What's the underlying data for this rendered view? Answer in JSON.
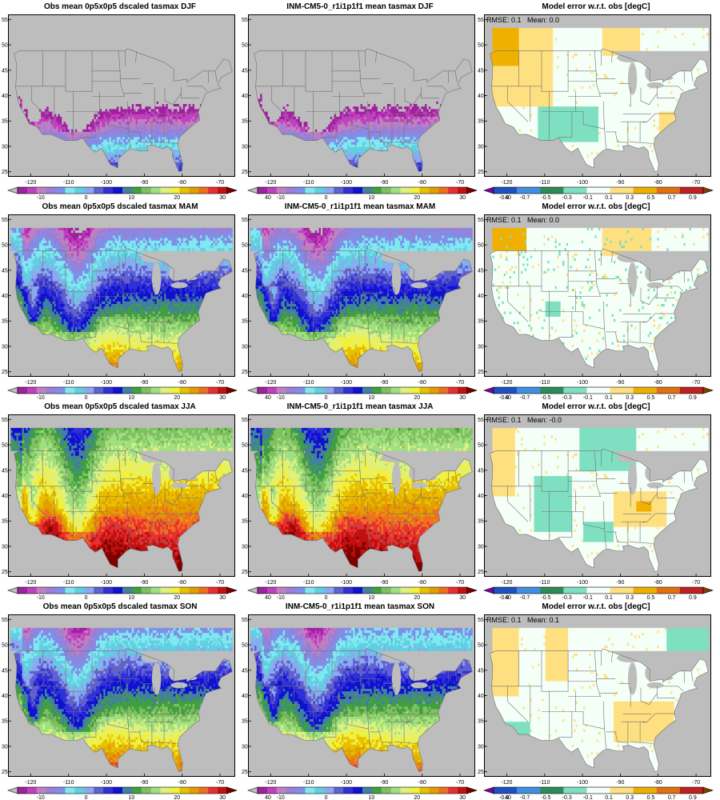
{
  "chart_data": [
    {
      "type": "heatmap",
      "title": "Obs mean 0p5x0p5 dscaled tasmax DJF",
      "kind": "abs",
      "season": "DJF",
      "colorbar": {
        "ticks": [
          "-10",
          "0",
          "10",
          "20",
          "30",
          "40"
        ]
      },
      "xticks": [
        "-120",
        "-110",
        "-100",
        "-90",
        "-80",
        "-70"
      ],
      "yticks": [
        "25",
        "30",
        "35",
        "40",
        "45",
        "50",
        "55"
      ]
    },
    {
      "type": "heatmap",
      "title": "INM-CM5-0_r1i1p1f1 mean tasmax DJF",
      "kind": "abs",
      "season": "DJF",
      "colorbar": {
        "ticks": [
          "-10",
          "0",
          "10",
          "20",
          "30",
          "40"
        ]
      },
      "xticks": [
        "-120",
        "-110",
        "-100",
        "-90",
        "-80",
        "-70"
      ],
      "yticks": [
        "25",
        "30",
        "35",
        "40",
        "45",
        "50",
        "55"
      ]
    },
    {
      "type": "heatmap",
      "title": "Model error w.r.t. obs [degC]",
      "kind": "err",
      "season": "DJF",
      "stats": "RMSE: 0.1   Mean: 0.0",
      "colorbar": {
        "ticks": [
          "-0.9",
          "-0.7",
          "-0.5",
          "-0.3",
          "-0.1",
          "0.1",
          "0.3",
          "0.5",
          "0.7",
          "0.9"
        ]
      },
      "xticks": [
        "-120",
        "-110",
        "-100",
        "-90",
        "-80",
        "-70"
      ],
      "yticks": [
        "25",
        "30",
        "35",
        "40",
        "45",
        "50",
        "55"
      ]
    },
    {
      "type": "heatmap",
      "title": "Obs mean 0p5x0p5 dscaled tasmax MAM",
      "kind": "abs",
      "season": "MAM",
      "colorbar": {
        "ticks": [
          "-10",
          "0",
          "10",
          "20",
          "30",
          "40"
        ]
      },
      "xticks": [
        "-120",
        "-110",
        "-100",
        "-90",
        "-80",
        "-70"
      ],
      "yticks": [
        "25",
        "30",
        "35",
        "40",
        "45",
        "50",
        "55"
      ]
    },
    {
      "type": "heatmap",
      "title": "INM-CM5-0_r1i1p1f1 mean tasmax MAM",
      "kind": "abs",
      "season": "MAM",
      "colorbar": {
        "ticks": [
          "-10",
          "0",
          "10",
          "20",
          "30",
          "40"
        ]
      },
      "xticks": [
        "-120",
        "-110",
        "-100",
        "-90",
        "-80",
        "-70"
      ],
      "yticks": [
        "25",
        "30",
        "35",
        "40",
        "45",
        "50",
        "55"
      ]
    },
    {
      "type": "heatmap",
      "title": "Model error w.r.t. obs [degC]",
      "kind": "err",
      "season": "MAM",
      "stats": "RMSE: 0.1   Mean: 0.0",
      "colorbar": {
        "ticks": [
          "-0.9",
          "-0.7",
          "-0.5",
          "-0.3",
          "-0.1",
          "0.1",
          "0.3",
          "0.5",
          "0.7",
          "0.9"
        ]
      },
      "xticks": [
        "-120",
        "-110",
        "-100",
        "-90",
        "-80",
        "-70"
      ],
      "yticks": [
        "25",
        "30",
        "35",
        "40",
        "45",
        "50",
        "55"
      ]
    },
    {
      "type": "heatmap",
      "title": "Obs mean 0p5x0p5 dscaled tasmax JJA",
      "kind": "abs",
      "season": "JJA",
      "colorbar": {
        "ticks": [
          "-10",
          "0",
          "10",
          "20",
          "30",
          "40"
        ]
      },
      "xticks": [
        "-120",
        "-110",
        "-100",
        "-90",
        "-80",
        "-70"
      ],
      "yticks": [
        "25",
        "30",
        "35",
        "40",
        "45",
        "50",
        "55"
      ]
    },
    {
      "type": "heatmap",
      "title": "INM-CM5-0_r1i1p1f1 mean tasmax JJA",
      "kind": "abs",
      "season": "JJA",
      "colorbar": {
        "ticks": [
          "-10",
          "0",
          "10",
          "20",
          "30",
          "40"
        ]
      },
      "xticks": [
        "-120",
        "-110",
        "-100",
        "-90",
        "-80",
        "-70"
      ],
      "yticks": [
        "25",
        "30",
        "35",
        "40",
        "45",
        "50",
        "55"
      ]
    },
    {
      "type": "heatmap",
      "title": "Model error w.r.t. obs [degC]",
      "kind": "err",
      "season": "JJA",
      "stats": "RMSE: 0.1   Mean: -0.0",
      "colorbar": {
        "ticks": [
          "-0.9",
          "-0.7",
          "-0.5",
          "-0.3",
          "-0.1",
          "0.1",
          "0.3",
          "0.5",
          "0.7",
          "0.9"
        ]
      },
      "xticks": [
        "-120",
        "-110",
        "-100",
        "-90",
        "-80",
        "-70"
      ],
      "yticks": [
        "25",
        "30",
        "35",
        "40",
        "45",
        "50",
        "55"
      ]
    },
    {
      "type": "heatmap",
      "title": "Obs mean 0p5x0p5 dscaled tasmax SON",
      "kind": "abs",
      "season": "SON",
      "colorbar": {
        "ticks": [
          "-10",
          "0",
          "10",
          "20",
          "30",
          "40"
        ]
      },
      "xticks": [
        "-120",
        "-110",
        "-100",
        "-90",
        "-80",
        "-70"
      ],
      "yticks": [
        "25",
        "30",
        "35",
        "40",
        "45",
        "50",
        "55"
      ]
    },
    {
      "type": "heatmap",
      "title": "INM-CM5-0_r1i1p1f1 mean tasmax SON",
      "kind": "abs",
      "season": "SON",
      "colorbar": {
        "ticks": [
          "-10",
          "0",
          "10",
          "20",
          "30",
          "40"
        ]
      },
      "xticks": [
        "-120",
        "-110",
        "-100",
        "-90",
        "-80",
        "-70"
      ],
      "yticks": [
        "25",
        "30",
        "35",
        "40",
        "45",
        "50",
        "55"
      ]
    },
    {
      "type": "heatmap",
      "title": "Model error w.r.t. obs [degC]",
      "kind": "err",
      "season": "SON",
      "stats": "RMSE: 0.1   Mean: 0.1",
      "colorbar": {
        "ticks": [
          "-0.9",
          "-0.7",
          "-0.5",
          "-0.3",
          "-0.1",
          "0.1",
          "0.3",
          "0.5",
          "0.7",
          "0.9"
        ]
      },
      "xticks": [
        "-120",
        "-110",
        "-100",
        "-90",
        "-80",
        "-70"
      ],
      "yticks": [
        "25",
        "30",
        "35",
        "40",
        "45",
        "50",
        "55"
      ]
    }
  ],
  "colors": {
    "abs": [
      "#bdbdbd",
      "#a020a0",
      "#c040c0",
      "#c080c0",
      "#9a7fd6",
      "#7f8fe8",
      "#80e8f0",
      "#60d0e0",
      "#8ca8f0",
      "#6060d0",
      "#3030d8",
      "#1010d0",
      "#4080a0",
      "#40a040",
      "#80c060",
      "#a0e080",
      "#e0f080",
      "#f0f040",
      "#e8c000",
      "#e0a000",
      "#f07020",
      "#e83030",
      "#c01010",
      "#800000"
    ],
    "err": [
      "#8000a0",
      "#2050c0",
      "#4090e0",
      "#2e8b57",
      "#7ee0c0",
      "#f4fff8",
      "#ffe080",
      "#f0b000",
      "#e07010",
      "#c02020",
      "#804000"
    ],
    "land_gray": "#bdbdbd",
    "state_lines": "#707070"
  }
}
